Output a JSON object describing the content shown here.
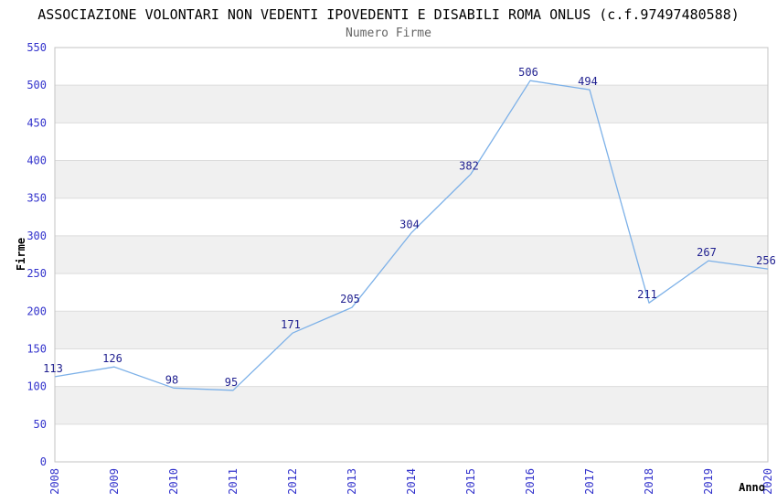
{
  "header": {
    "title": "ASSOCIAZIONE VOLONTARI NON VEDENTI IPOVEDENTI E DISABILI ROMA ONLUS (c.f.97497480588)",
    "subtitle": "Numero Firme"
  },
  "chart_data": {
    "type": "line",
    "title": "Numero Firme",
    "xlabel": "Anno",
    "ylabel": "Firme",
    "categories": [
      "2008",
      "2009",
      "2010",
      "2011",
      "2012",
      "2013",
      "2014",
      "2015",
      "2016",
      "2017",
      "2018",
      "2019",
      "2020"
    ],
    "values": [
      113,
      126,
      98,
      95,
      171,
      205,
      304,
      382,
      506,
      494,
      211,
      267,
      256
    ],
    "ylim": [
      0,
      550
    ],
    "ytick_step": 50,
    "yticks": [
      0,
      50,
      100,
      150,
      200,
      250,
      300,
      350,
      400,
      450,
      500,
      550
    ],
    "grid": "alternating-horizontal-bands",
    "legend": "none",
    "data_labels_shown": true,
    "colors": {
      "line": "#7db1e8",
      "tick_label": "#3333cc",
      "data_label": "#1f1f8f",
      "band": "#f0f0f0",
      "grid_line": "#dcdcdc",
      "plot_border": "#c3c3c3",
      "title": "#000000",
      "subtitle": "#666666",
      "axis_title": "#000000",
      "background": "#ffffff"
    }
  }
}
